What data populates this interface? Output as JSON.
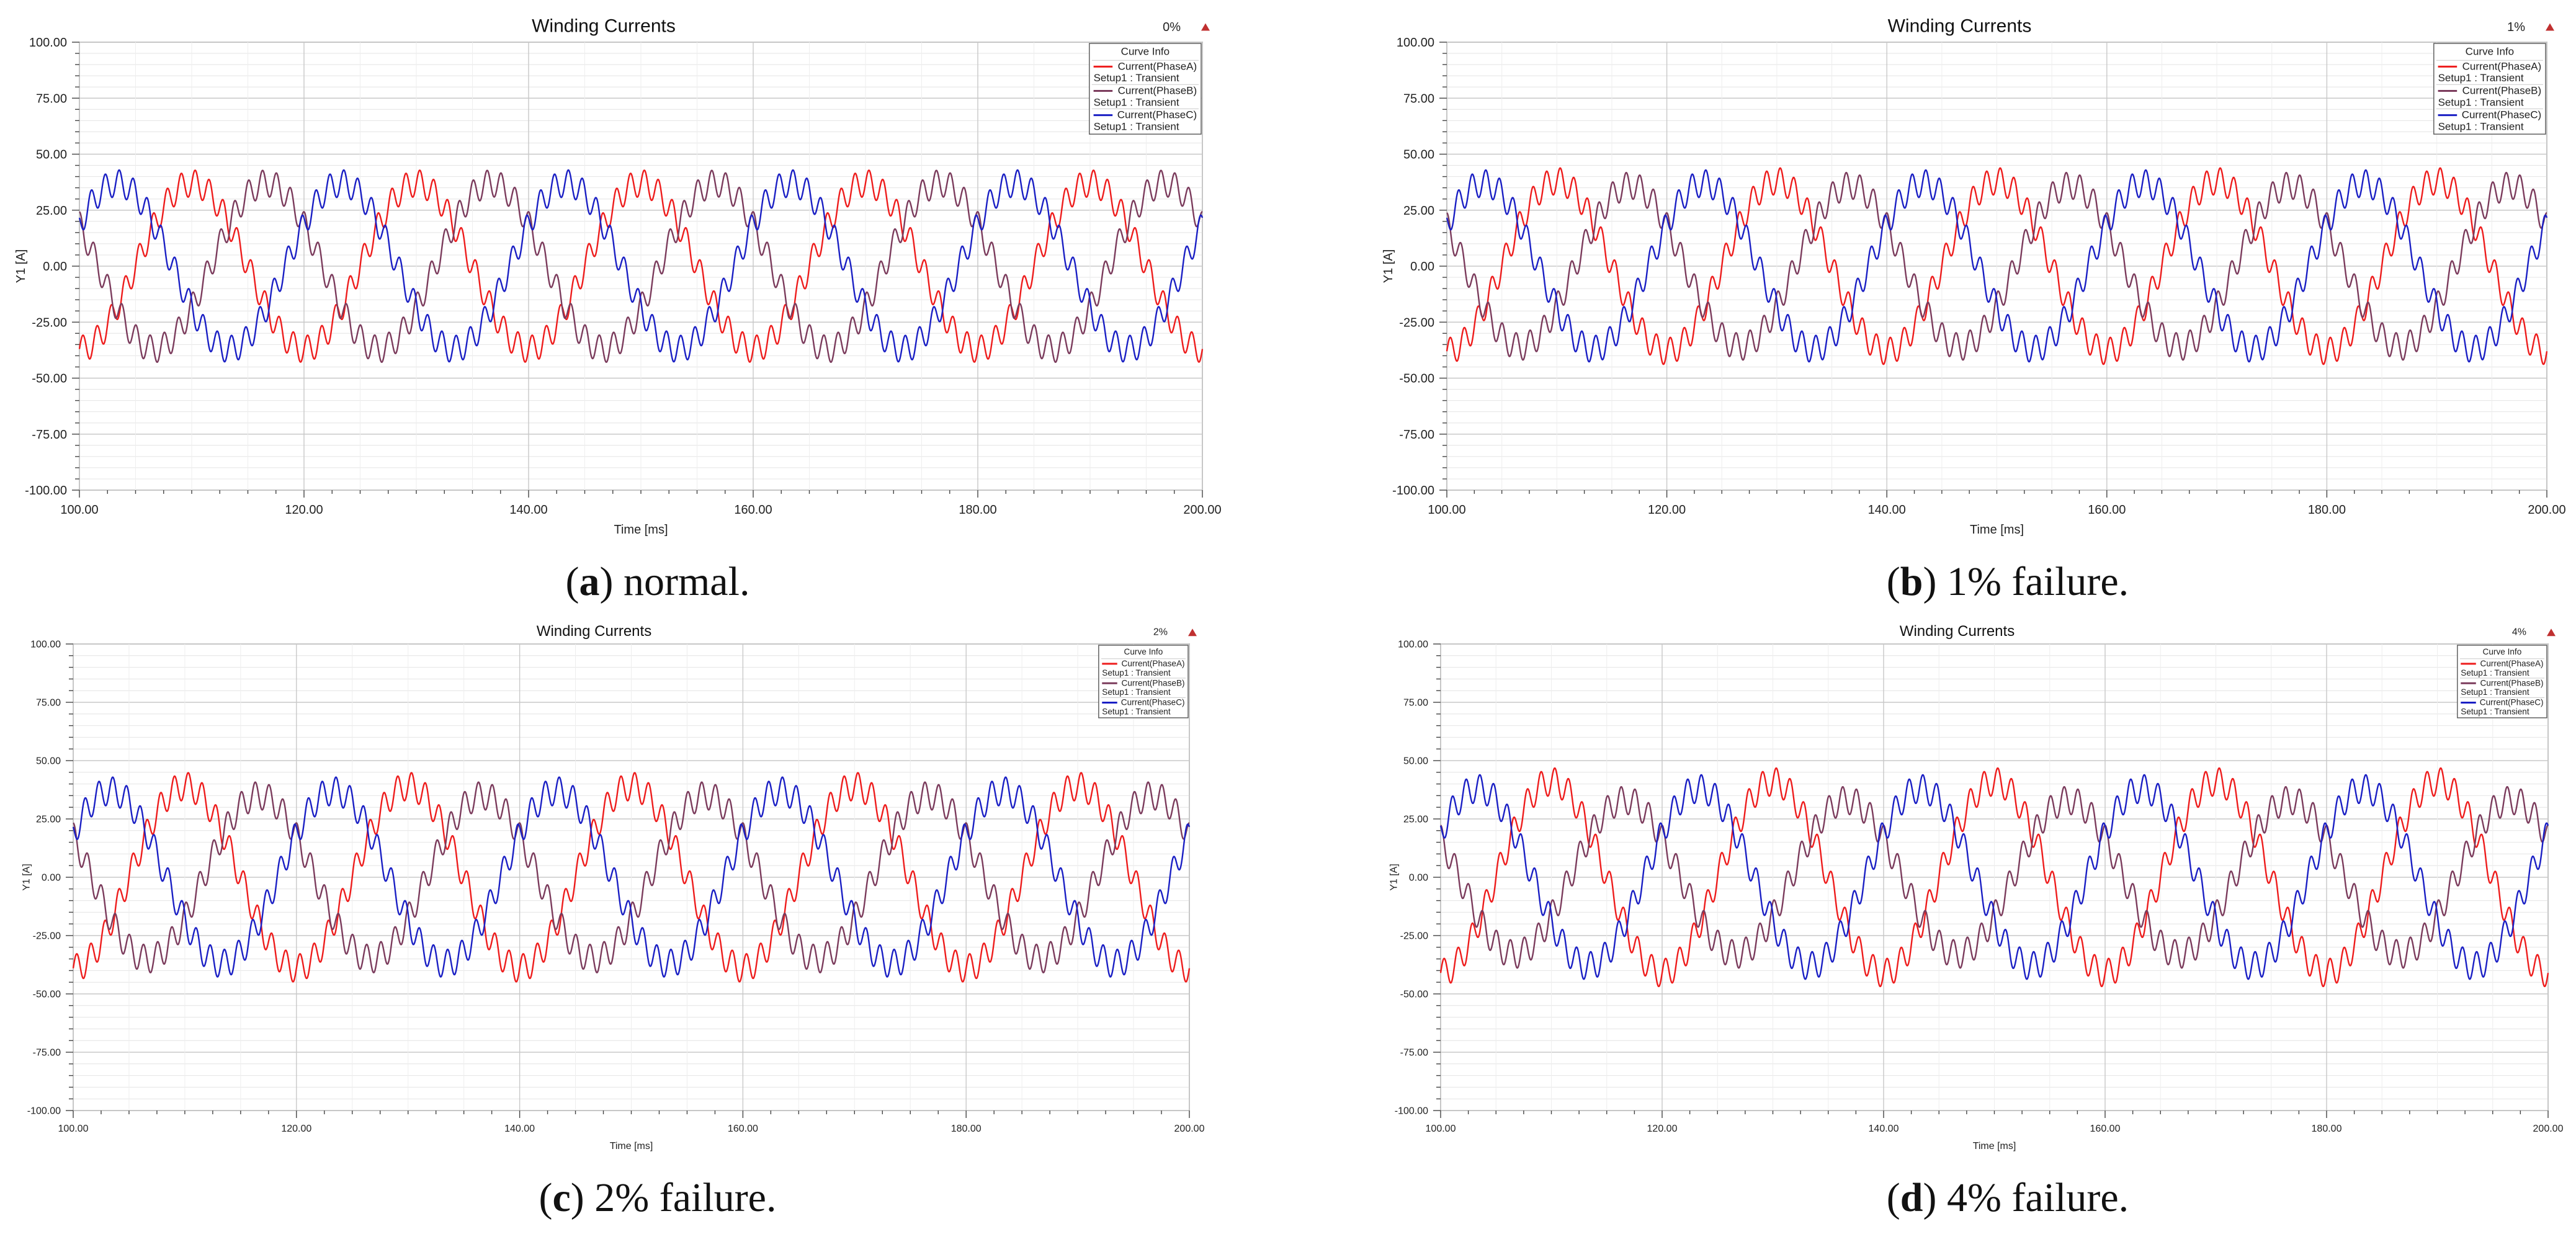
{
  "figure": {
    "panels": [
      {
        "id": "a",
        "letter": "a",
        "caption_text": ") normal.",
        "open_paren": "("
      },
      {
        "id": "b",
        "letter": "b",
        "caption_text": ") 1% failure.",
        "open_paren": "("
      },
      {
        "id": "c",
        "letter": "c",
        "caption_text": ") 2% failure.",
        "open_paren": "("
      },
      {
        "id": "d",
        "letter": "d",
        "caption_text": ") 4% failure.",
        "open_paren": "("
      }
    ]
  },
  "chart_data": [
    {
      "type": "line",
      "title": "Winding Currents",
      "corner_label": "0%",
      "xlabel": "Time [ms]",
      "ylabel": "Y1 [A]",
      "xlim": [
        100,
        200
      ],
      "ylim": [
        -100,
        100
      ],
      "xticks": [
        "100.00",
        "120.00",
        "140.00",
        "160.00",
        "180.00",
        "200.00"
      ],
      "yticks": [
        "100.00",
        "75.00",
        "50.00",
        "25.00",
        "0.00",
        "-25.00",
        "-50.00",
        "-75.00",
        "-100.00"
      ],
      "legend": {
        "title": "Curve Info",
        "position": "top-right"
      },
      "fundamental_period_ms": 20,
      "ripple_period_ms": 1.25,
      "series": [
        {
          "name": "Current(PhaseA)",
          "setup": "Setup1 : Transient",
          "color": "#ee1c1c",
          "amplitude": 37,
          "ripple": 6,
          "phase_deg": -90
        },
        {
          "name": "Current(PhaseB)",
          "setup": "Setup1 : Transient",
          "color": "#7b3b5c",
          "amplitude": 37,
          "ripple": 6,
          "phase_deg": 150
        },
        {
          "name": "Current(PhaseC)",
          "setup": "Setup1 : Transient",
          "color": "#1a1fc4",
          "amplitude": 37,
          "ripple": 6,
          "phase_deg": 30
        }
      ]
    },
    {
      "type": "line",
      "title": "Winding Currents",
      "corner_label": "1%",
      "xlabel": "Time [ms]",
      "ylabel": "Y1 [A]",
      "xlim": [
        100,
        200
      ],
      "ylim": [
        -100,
        100
      ],
      "xticks": [
        "100.00",
        "120.00",
        "140.00",
        "160.00",
        "180.00",
        "200.00"
      ],
      "yticks": [
        "100.00",
        "75.00",
        "50.00",
        "25.00",
        "0.00",
        "-25.00",
        "-50.00",
        "-75.00",
        "-100.00"
      ],
      "legend": {
        "title": "Curve Info",
        "position": "top-right"
      },
      "fundamental_period_ms": 20,
      "ripple_period_ms": 1.25,
      "series": [
        {
          "name": "Current(PhaseA)",
          "setup": "Setup1 : Transient",
          "color": "#ee1c1c",
          "amplitude": 38,
          "ripple": 6,
          "phase_deg": -90
        },
        {
          "name": "Current(PhaseB)",
          "setup": "Setup1 : Transient",
          "color": "#7b3b5c",
          "amplitude": 36,
          "ripple": 6,
          "phase_deg": 150
        },
        {
          "name": "Current(PhaseC)",
          "setup": "Setup1 : Transient",
          "color": "#1a1fc4",
          "amplitude": 37,
          "ripple": 6,
          "phase_deg": 30
        }
      ]
    },
    {
      "type": "line",
      "title": "Winding Currents",
      "corner_label": "2%",
      "xlabel": "Time [ms]",
      "ylabel": "Y1 [A]",
      "xlim": [
        100,
        200
      ],
      "ylim": [
        -100,
        100
      ],
      "xticks": [
        "100.00",
        "120.00",
        "140.00",
        "160.00",
        "180.00",
        "200.00"
      ],
      "yticks": [
        "100.00",
        "75.00",
        "50.00",
        "25.00",
        "0.00",
        "-25.00",
        "-50.00",
        "-75.00",
        "-100.00"
      ],
      "legend": {
        "title": "Curve Info",
        "position": "top-right"
      },
      "fundamental_period_ms": 20,
      "ripple_period_ms": 1.25,
      "series": [
        {
          "name": "Current(PhaseA)",
          "setup": "Setup1 : Transient",
          "color": "#ee1c1c",
          "amplitude": 39,
          "ripple": 6,
          "phase_deg": -90
        },
        {
          "name": "Current(PhaseB)",
          "setup": "Setup1 : Transient",
          "color": "#7b3b5c",
          "amplitude": 35,
          "ripple": 6,
          "phase_deg": 150
        },
        {
          "name": "Current(PhaseC)",
          "setup": "Setup1 : Transient",
          "color": "#1a1fc4",
          "amplitude": 37,
          "ripple": 6,
          "phase_deg": 30
        }
      ]
    },
    {
      "type": "line",
      "title": "Winding Currents",
      "corner_label": "4%",
      "xlabel": "Time [ms]",
      "ylabel": "Y1 [A]",
      "xlim": [
        100,
        200
      ],
      "ylim": [
        -100,
        100
      ],
      "xticks": [
        "100.00",
        "120.00",
        "140.00",
        "160.00",
        "180.00",
        "200.00"
      ],
      "yticks": [
        "100.00",
        "75.00",
        "50.00",
        "25.00",
        "0.00",
        "-25.00",
        "-50.00",
        "-75.00",
        "-100.00"
      ],
      "legend": {
        "title": "Curve Info",
        "position": "top-right"
      },
      "fundamental_period_ms": 20,
      "ripple_period_ms": 1.25,
      "series": [
        {
          "name": "Current(PhaseA)",
          "setup": "Setup1 : Transient",
          "color": "#ee1c1c",
          "amplitude": 41,
          "ripple": 6,
          "phase_deg": -90
        },
        {
          "name": "Current(PhaseB)",
          "setup": "Setup1 : Transient",
          "color": "#7b3b5c",
          "amplitude": 33,
          "ripple": 6,
          "phase_deg": 150
        },
        {
          "name": "Current(PhaseC)",
          "setup": "Setup1 : Transient",
          "color": "#1a1fc4",
          "amplitude": 38,
          "ripple": 6,
          "phase_deg": 30
        }
      ]
    }
  ]
}
